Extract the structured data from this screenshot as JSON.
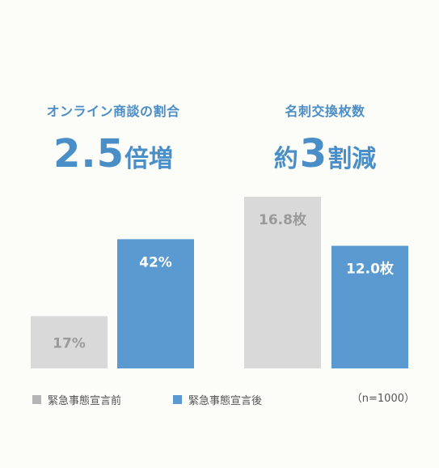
{
  "panels": [
    {
      "title": "オンライン商談の割合",
      "headline": {
        "prefix": "",
        "number": "2.5",
        "suffix": "倍増"
      }
    },
    {
      "title": "名刺交換枚数",
      "headline": {
        "prefix": "約",
        "number": "3",
        "suffix": "割減"
      }
    }
  ],
  "legend": [
    {
      "label": "緊急事態宣言前",
      "color": "#b4b4b4"
    },
    {
      "label": "緊急事態宣言後",
      "color": "#5a9ad0"
    }
  ],
  "note": "（n=1000）",
  "chart_data": [
    {
      "type": "bar",
      "categories": [
        "緊急事態宣言前",
        "緊急事態宣言後"
      ],
      "values": [
        17,
        42
      ],
      "data_labels": [
        "17%",
        "42%"
      ],
      "unit": "%",
      "title": "オンライン商談の割合",
      "colors": [
        "#d9d9d9",
        "#5a9ad0"
      ],
      "label_colors": [
        "#9a9a9a",
        "#ffffff"
      ],
      "ylim": [
        0,
        100
      ],
      "grid": false
    },
    {
      "type": "bar",
      "categories": [
        "緊急事態宣言前",
        "緊急事態宣言後"
      ],
      "values": [
        16.8,
        12.0
      ],
      "data_labels": [
        "16.8枚",
        "12.0枚"
      ],
      "unit": "枚",
      "title": "名刺交換枚数",
      "colors": [
        "#d9d9d9",
        "#5a9ad0"
      ],
      "label_colors": [
        "#9a9a9a",
        "#ffffff"
      ],
      "ylim": [
        0,
        16.8
      ],
      "grid": false
    }
  ]
}
